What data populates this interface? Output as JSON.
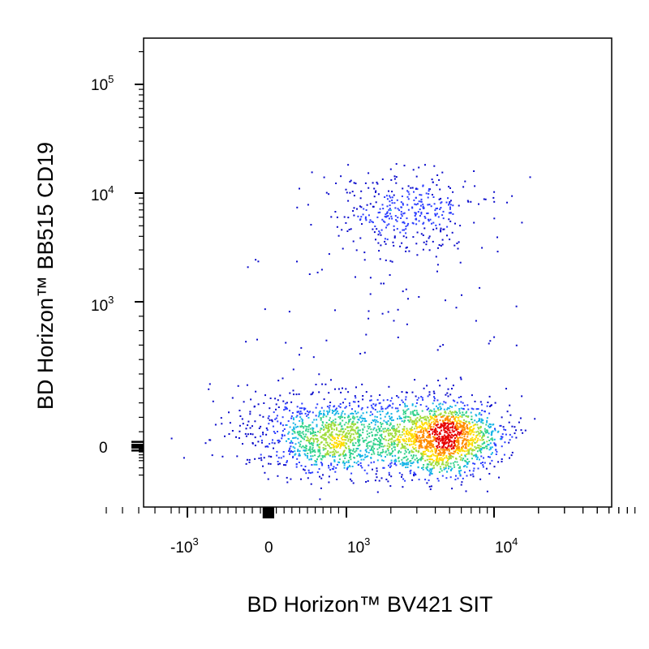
{
  "chart_data": {
    "type": "scatter",
    "style": "pseudocolor density dot plot",
    "title": "",
    "xlabel": "BD Horizon™ BV421 SIT",
    "ylabel": "BD Horizon™ BB515  CD19",
    "x_scale": "biexponential",
    "y_scale": "biexponential",
    "xlim": [
      -2000,
      100000
    ],
    "ylim": [
      -200,
      250000
    ],
    "grid": false,
    "legend": "none",
    "x_ticks": [
      {
        "base": "-10",
        "exp": "3"
      },
      {
        "base": "0",
        "exp": ""
      },
      {
        "base": "10",
        "exp": "3"
      },
      {
        "base": "10",
        "exp": "4"
      }
    ],
    "y_ticks": [
      {
        "base": "10",
        "exp": "5"
      },
      {
        "base": "10",
        "exp": "4"
      },
      {
        "base": "10",
        "exp": "3"
      },
      {
        "base": "0",
        "exp": ""
      }
    ],
    "populations": [
      {
        "description": "CD19- SIT low/intermediate",
        "x_center": 900,
        "y_center": 80,
        "events": 1300
      },
      {
        "description": "CD19- SIT high",
        "x_center": 4500,
        "y_center": 60,
        "events": 1500
      },
      {
        "description": "CD19+ B cells",
        "x_center": 2500,
        "y_center": 7000,
        "events": 380
      }
    ],
    "density_colors": [
      "#0a0acb",
      "#2a3cff",
      "#14b4e6",
      "#32d28c",
      "#a0dc3c",
      "#ffdc00",
      "#ff8c00",
      "#e60000"
    ]
  }
}
